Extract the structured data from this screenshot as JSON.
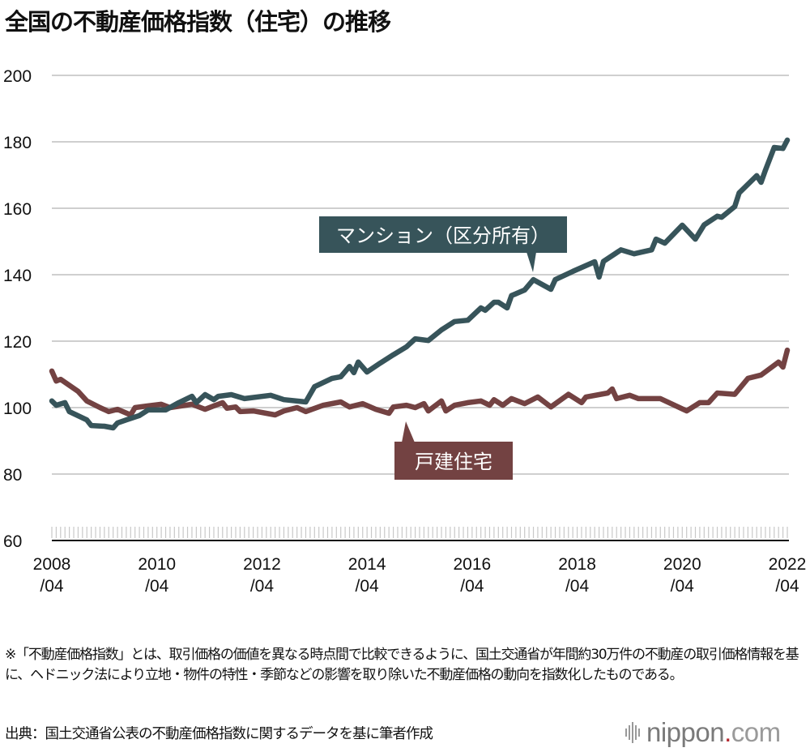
{
  "title": "全国の不動産価格指数（住宅）の推移",
  "chart_data": {
    "type": "line",
    "title": "全国の不動産価格指数（住宅）の推移",
    "xlabel": "",
    "ylabel": "",
    "ylim": [
      60,
      200
    ],
    "yticks": [
      "60",
      "80",
      "100",
      "120",
      "140",
      "160",
      "180",
      "200"
    ],
    "xlim": [
      "2008-04",
      "2022-04"
    ],
    "xticks": [
      {
        "year": "2008",
        "month": "/04"
      },
      {
        "year": "2010",
        "month": "/04"
      },
      {
        "year": "2012",
        "month": "/04"
      },
      {
        "year": "2014",
        "month": "/04"
      },
      {
        "year": "2016",
        "month": "/04"
      },
      {
        "year": "2018",
        "month": "/04"
      },
      {
        "year": "2020",
        "month": "/04"
      },
      {
        "year": "2022",
        "month": "/04"
      }
    ],
    "grid": true,
    "series": [
      {
        "name": "マンション（区分所有）",
        "color": "#37545a",
        "points": [
          [
            "2008-04",
            102
          ],
          [
            "2008-05",
            100.7
          ],
          [
            "2008-07",
            101.5
          ],
          [
            "2008-08",
            98.8
          ],
          [
            "2008-12",
            96.3
          ],
          [
            "2009-01",
            94.6
          ],
          [
            "2009-04",
            94.4
          ],
          [
            "2009-06",
            93.9
          ],
          [
            "2009-07",
            95.4
          ],
          [
            "2009-09",
            96.3
          ],
          [
            "2009-12",
            97.6
          ],
          [
            "2010-02",
            99.3
          ],
          [
            "2010-06",
            99.3
          ],
          [
            "2010-09",
            101.5
          ],
          [
            "2010-12",
            103.4
          ],
          [
            "2011-01",
            101.5
          ],
          [
            "2011-03",
            103.9
          ],
          [
            "2011-05",
            102.4
          ],
          [
            "2011-06",
            103.4
          ],
          [
            "2011-09",
            103.9
          ],
          [
            "2011-12",
            102.7
          ],
          [
            "2012-06",
            103.7
          ],
          [
            "2012-09",
            102.4
          ],
          [
            "2013-02",
            101.7
          ],
          [
            "2013-04",
            106.3
          ],
          [
            "2013-08",
            108.8
          ],
          [
            "2013-10",
            109.3
          ],
          [
            "2013-12",
            112.4
          ],
          [
            "2014-01",
            110.5
          ],
          [
            "2014-02",
            113.7
          ],
          [
            "2014-04",
            110.7
          ],
          [
            "2014-07",
            113.4
          ],
          [
            "2014-10",
            115.9
          ],
          [
            "2015-01",
            118.3
          ],
          [
            "2015-03",
            120.7
          ],
          [
            "2015-06",
            120.2
          ],
          [
            "2015-09",
            123.4
          ],
          [
            "2015-12",
            125.9
          ],
          [
            "2016-03",
            126.3
          ],
          [
            "2016-06",
            130
          ],
          [
            "2016-07",
            129.3
          ],
          [
            "2016-09",
            131.7
          ],
          [
            "2016-10",
            131.7
          ],
          [
            "2016-12",
            130
          ],
          [
            "2017-01",
            133.7
          ],
          [
            "2017-04",
            135.4
          ],
          [
            "2017-06",
            138.5
          ],
          [
            "2017-10",
            135.6
          ],
          [
            "2017-11",
            138.5
          ],
          [
            "2018-03",
            141
          ],
          [
            "2018-08",
            143.9
          ],
          [
            "2018-09",
            139.3
          ],
          [
            "2018-10",
            144
          ],
          [
            "2019-02",
            147.5
          ],
          [
            "2019-05",
            146.3
          ],
          [
            "2019-09",
            147.5
          ],
          [
            "2019-10",
            150.7
          ],
          [
            "2019-12",
            149.5
          ],
          [
            "2020-04",
            154.9
          ],
          [
            "2020-07",
            150.7
          ],
          [
            "2020-09",
            155
          ],
          [
            "2020-12",
            157.6
          ],
          [
            "2021-01",
            157.3
          ],
          [
            "2021-04",
            160.5
          ],
          [
            "2021-05",
            164.6
          ],
          [
            "2021-09",
            169.8
          ],
          [
            "2021-10",
            167.8
          ],
          [
            "2021-11",
            171.5
          ],
          [
            "2022-01",
            178.3
          ],
          [
            "2022-03",
            178
          ],
          [
            "2022-04",
            180.5
          ]
        ]
      },
      {
        "name": "戸建住宅",
        "color": "#734242",
        "points": [
          [
            "2008-04",
            111
          ],
          [
            "2008-05",
            108
          ],
          [
            "2008-06",
            108.5
          ],
          [
            "2008-10",
            104.9
          ],
          [
            "2008-12",
            102
          ],
          [
            "2009-03",
            100
          ],
          [
            "2009-05",
            98.8
          ],
          [
            "2009-07",
            99.5
          ],
          [
            "2009-10",
            97.8
          ],
          [
            "2009-11",
            100
          ],
          [
            "2010-02",
            100.5
          ],
          [
            "2010-05",
            101
          ],
          [
            "2010-07",
            100
          ],
          [
            "2010-12",
            101
          ],
          [
            "2011-03",
            99.5
          ],
          [
            "2011-05",
            100.5
          ],
          [
            "2011-07",
            101.5
          ],
          [
            "2011-08",
            99.8
          ],
          [
            "2011-10",
            100.2
          ],
          [
            "2011-11",
            98.8
          ],
          [
            "2012-02",
            99
          ],
          [
            "2012-07",
            97.8
          ],
          [
            "2012-09",
            99
          ],
          [
            "2012-12",
            100
          ],
          [
            "2013-02",
            98.8
          ],
          [
            "2013-06",
            100.7
          ],
          [
            "2013-10",
            101.7
          ],
          [
            "2013-12",
            100.2
          ],
          [
            "2014-03",
            101.2
          ],
          [
            "2014-06",
            99.5
          ],
          [
            "2014-09",
            98.3
          ],
          [
            "2014-10",
            100.2
          ],
          [
            "2015-01",
            100.7
          ],
          [
            "2015-03",
            100
          ],
          [
            "2015-05",
            101.2
          ],
          [
            "2015-06",
            99
          ],
          [
            "2015-09",
            102
          ],
          [
            "2015-10",
            99
          ],
          [
            "2015-12",
            100.7
          ],
          [
            "2016-03",
            101.5
          ],
          [
            "2016-06",
            102
          ],
          [
            "2016-08",
            100.7
          ],
          [
            "2016-09",
            102.4
          ],
          [
            "2016-11",
            100.7
          ],
          [
            "2017-01",
            102.7
          ],
          [
            "2017-04",
            101.2
          ],
          [
            "2017-07",
            103.2
          ],
          [
            "2017-10",
            100.2
          ],
          [
            "2018-02",
            104
          ],
          [
            "2018-05",
            101.5
          ],
          [
            "2018-06",
            103.2
          ],
          [
            "2018-11",
            104.4
          ],
          [
            "2018-12",
            105.6
          ],
          [
            "2019-01",
            102.7
          ],
          [
            "2019-04",
            103.7
          ],
          [
            "2019-06",
            102.7
          ],
          [
            "2019-11",
            102.7
          ],
          [
            "2020-05",
            99
          ],
          [
            "2020-08",
            101.5
          ],
          [
            "2020-10",
            101.5
          ],
          [
            "2020-12",
            104.4
          ],
          [
            "2021-04",
            104
          ],
          [
            "2021-07",
            108.8
          ],
          [
            "2021-10",
            109.8
          ],
          [
            "2022-02",
            113.7
          ],
          [
            "2022-03",
            112.2
          ],
          [
            "2022-04",
            117.3
          ]
        ]
      }
    ]
  },
  "note": "※「不動産価格指数」とは、取引価格の価値を異なる時点間で比較できるように、国土交通省が年間約30万件の不動産の取引価格情報を基に、ヘドニック法により立地・物件の特性・季節などの影響を取り除いた不動産価格の動向を指数化したものである。",
  "source": "出典：国土交通省公表の不動産価格指数に関するデータを基に筆者作成",
  "logo": {
    "name": "nippon",
    "dot": ".",
    "suffix": "com"
  }
}
